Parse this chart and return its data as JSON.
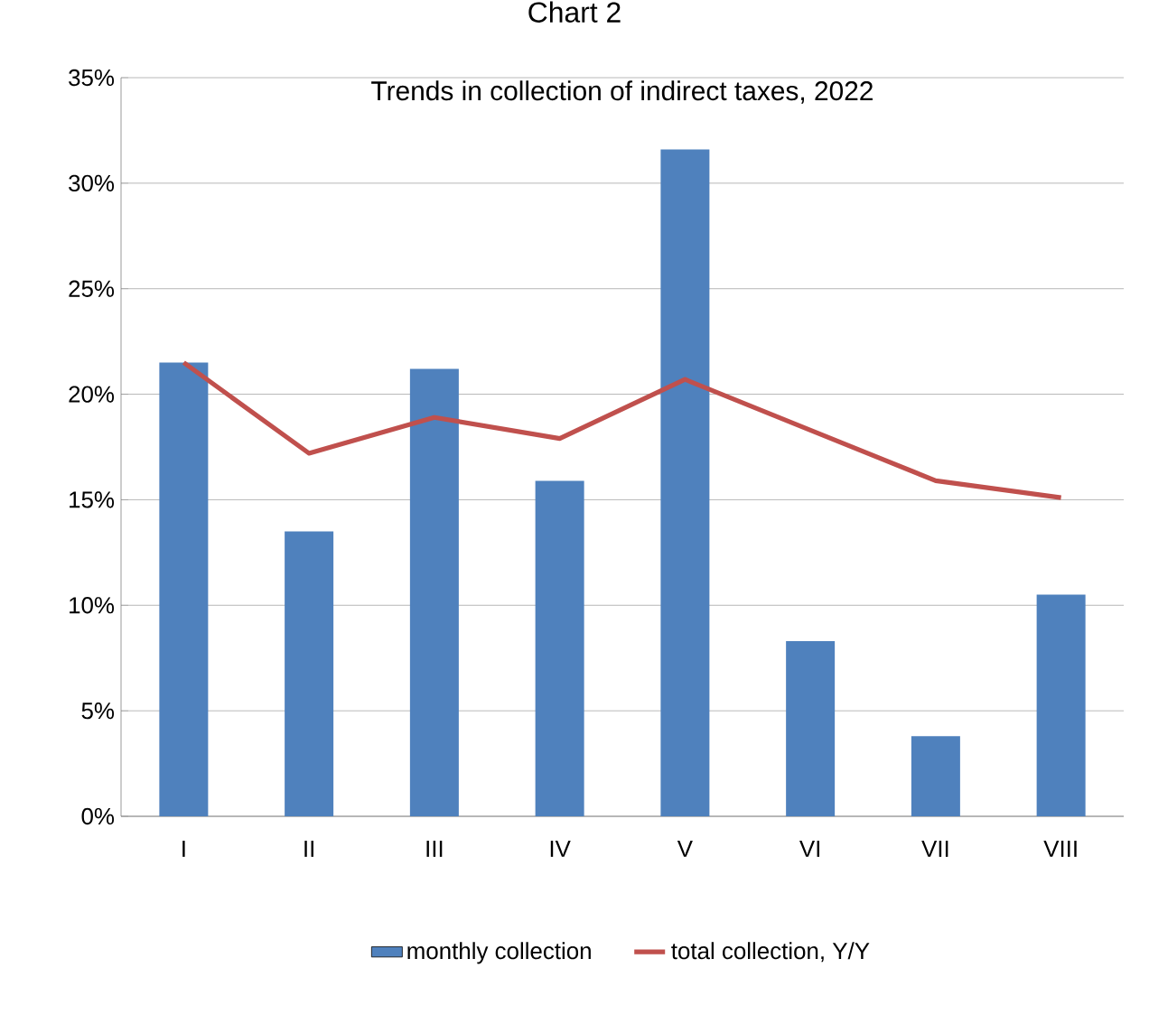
{
  "chart_data": {
    "type": "bar",
    "title": "Trends in collection of indirect taxes, 2022",
    "annotations": [
      "Chart 2"
    ],
    "categories": [
      "I",
      "II",
      "III",
      "IV",
      "V",
      "VI",
      "VII",
      "VIII"
    ],
    "series": [
      {
        "name": "monthly collection",
        "color": "#4f81bd",
        "values": [
          21.5,
          13.5,
          21.2,
          15.9,
          31.6,
          8.3,
          3.8,
          10.5
        ]
      },
      {
        "name": "total collection, Y/Y",
        "type": "line",
        "color": "#c0504d",
        "values": [
          21.5,
          17.2,
          18.9,
          17.9,
          20.7,
          18.3,
          15.9,
          15.1
        ]
      }
    ],
    "ylim": [
      0,
      35
    ],
    "yticks": [
      {
        "value": 0,
        "label": "0%"
      },
      {
        "value": 5,
        "label": "5%"
      },
      {
        "value": 10,
        "label": "10%"
      },
      {
        "value": 15,
        "label": "15%"
      },
      {
        "value": 20,
        "label": "20%"
      },
      {
        "value": 25,
        "label": "25%"
      },
      {
        "value": 30,
        "label": "30%"
      },
      {
        "value": 35,
        "label": "35%"
      }
    ],
    "grid": "y",
    "legend": "bottom"
  }
}
